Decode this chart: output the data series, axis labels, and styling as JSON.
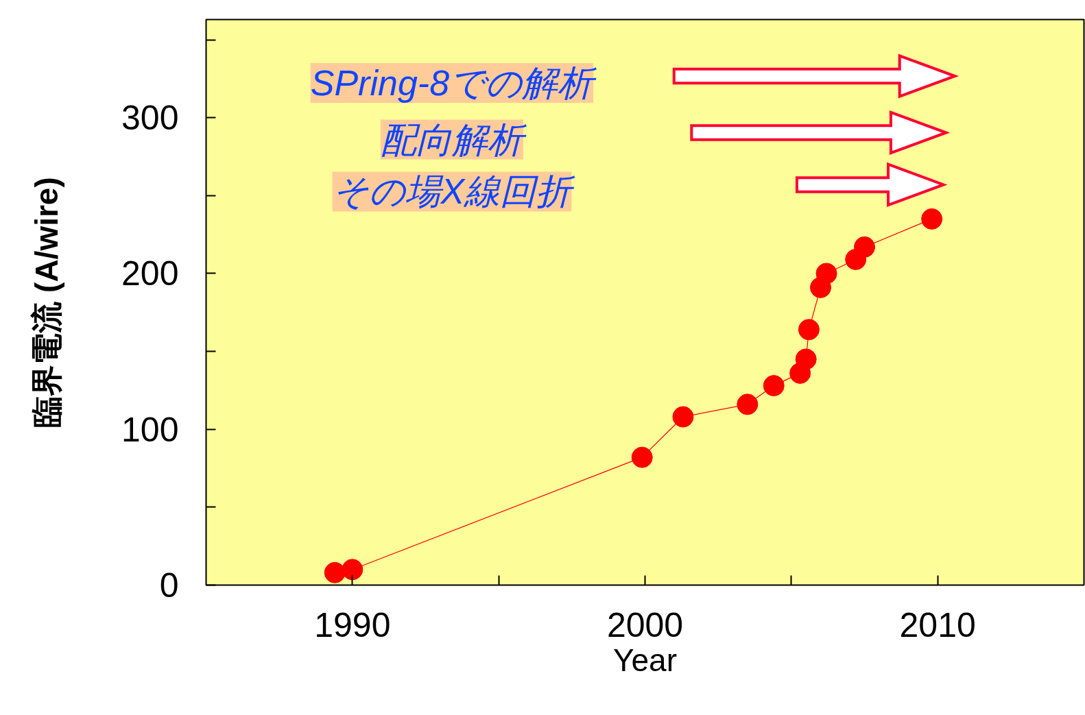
{
  "chart_data": {
    "type": "line",
    "xlabel": "Year",
    "ylabel": "臨界電流 (A/wire)",
    "x": [
      1989.4,
      1990.0,
      1999.9,
      2001.3,
      2003.5,
      2004.4,
      2005.3,
      2005.5,
      2005.6,
      2006.0,
      2006.2,
      2007.2,
      2007.5,
      2009.8
    ],
    "series": [
      {
        "color": "#ff0000",
        "values": [
          8,
          10,
          82,
          108,
          116,
          128,
          136,
          145,
          164,
          191,
          200,
          209,
          217,
          235
        ]
      }
    ],
    "marker": "circle",
    "line_style": "solid",
    "grid": false,
    "xlim": [
      1985,
      2015
    ],
    "ylim": [
      0,
      363
    ],
    "xticks": [
      1990,
      {
        "value": 1995,
        "label": null
      },
      2000,
      {
        "value": 2005,
        "label": null
      },
      2010
    ],
    "yticks": [
      0,
      {
        "value": 50,
        "label": null
      },
      100,
      {
        "value": 150,
        "label": null
      },
      200,
      {
        "value": 250,
        "label": null
      },
      300,
      {
        "value": 350,
        "label": null
      }
    ],
    "annotations": [
      "SPring-8での解析",
      "配向解析",
      "その場X線回折"
    ]
  }
}
